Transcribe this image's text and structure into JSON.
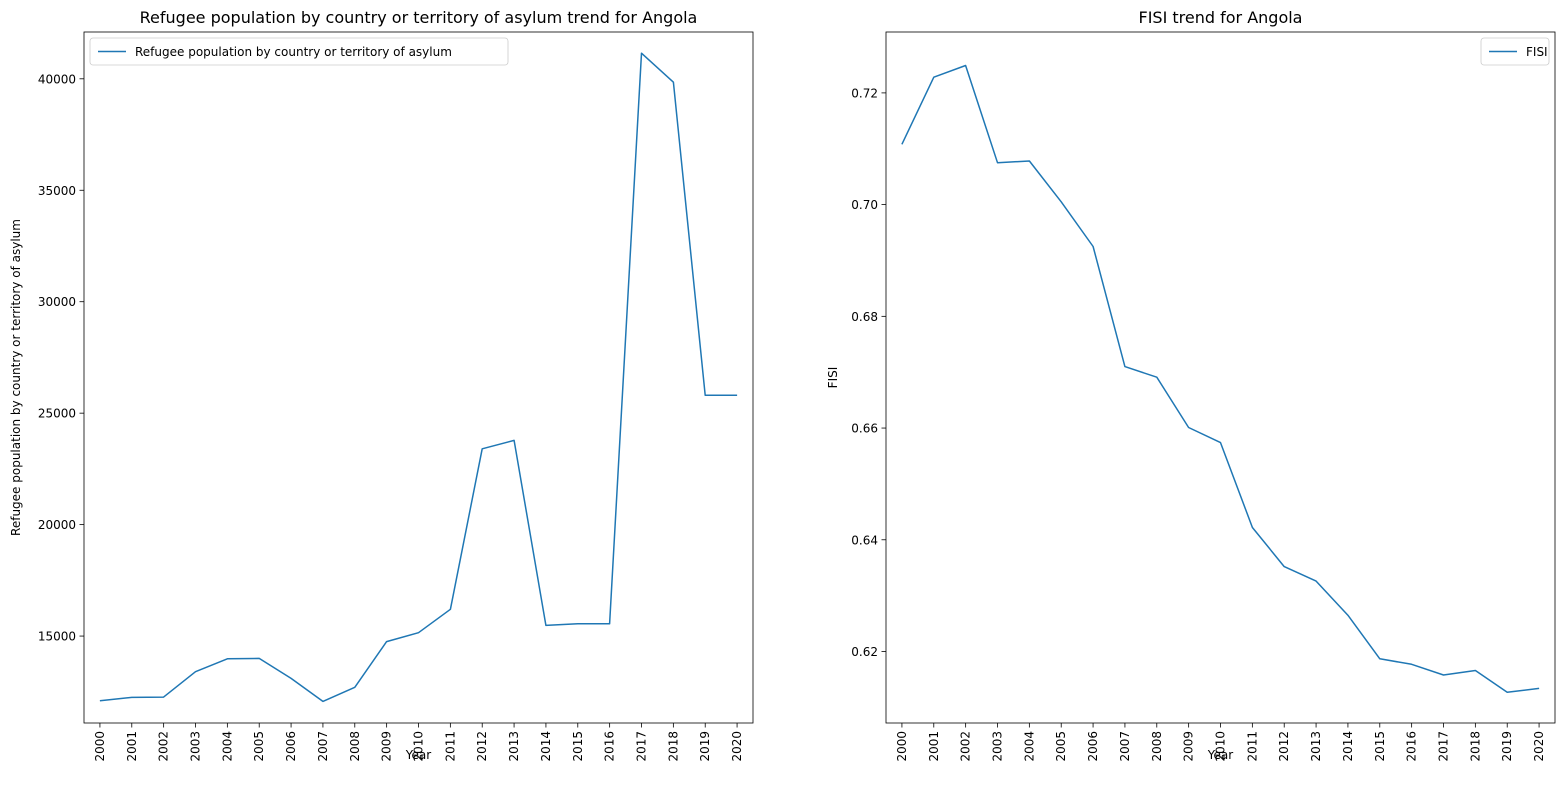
{
  "chart_data": [
    {
      "type": "line",
      "title": "Refugee population by country or territory of asylum trend for Angola",
      "xlabel": "Year",
      "ylabel": "Refugee population by country or territory of asylum",
      "categories": [
        "2000",
        "2001",
        "2002",
        "2003",
        "2004",
        "2005",
        "2006",
        "2007",
        "2008",
        "2009",
        "2010",
        "2011",
        "2012",
        "2013",
        "2014",
        "2015",
        "2016",
        "2017",
        "2018",
        "2019",
        "2020"
      ],
      "yticks": [
        15000,
        20000,
        25000,
        30000,
        35000,
        40000
      ],
      "ylim": [
        11100,
        42100
      ],
      "grid": false,
      "legend_position": "upper-left",
      "series": [
        {
          "name": "Refugee population by country or territory of asylum",
          "color": "#1f77b4",
          "values": [
            12100,
            12250,
            12260,
            13400,
            13980,
            14000,
            13100,
            12070,
            12700,
            14750,
            15150,
            16200,
            23400,
            23780,
            15480,
            15550,
            15550,
            41150,
            39850,
            25800,
            25800
          ]
        }
      ]
    },
    {
      "type": "line",
      "title": "FISI trend for Angola",
      "xlabel": "Year",
      "ylabel": "FISI",
      "categories": [
        "2000",
        "2001",
        "2002",
        "2003",
        "2004",
        "2005",
        "2006",
        "2007",
        "2008",
        "2009",
        "2010",
        "2011",
        "2012",
        "2013",
        "2014",
        "2015",
        "2016",
        "2017",
        "2018",
        "2019",
        "2020"
      ],
      "yticks": [
        0.62,
        0.64,
        0.66,
        0.68,
        0.7,
        0.72
      ],
      "ytick_labels": [
        "0.62",
        "0.64",
        "0.66",
        "0.68",
        "0.70",
        "0.72"
      ],
      "ylim": [
        0.6072,
        0.7309
      ],
      "grid": false,
      "legend_position": "upper-right",
      "series": [
        {
          "name": "FISI",
          "color": "#1f77b4",
          "values": [
            0.7108,
            0.7228,
            0.7249,
            0.7075,
            0.7078,
            0.7005,
            0.6925,
            0.671,
            0.6691,
            0.6601,
            0.6574,
            0.6422,
            0.6352,
            0.6326,
            0.6265,
            0.6187,
            0.6177,
            0.6158,
            0.6166,
            0.6127,
            0.6134
          ]
        }
      ]
    }
  ]
}
